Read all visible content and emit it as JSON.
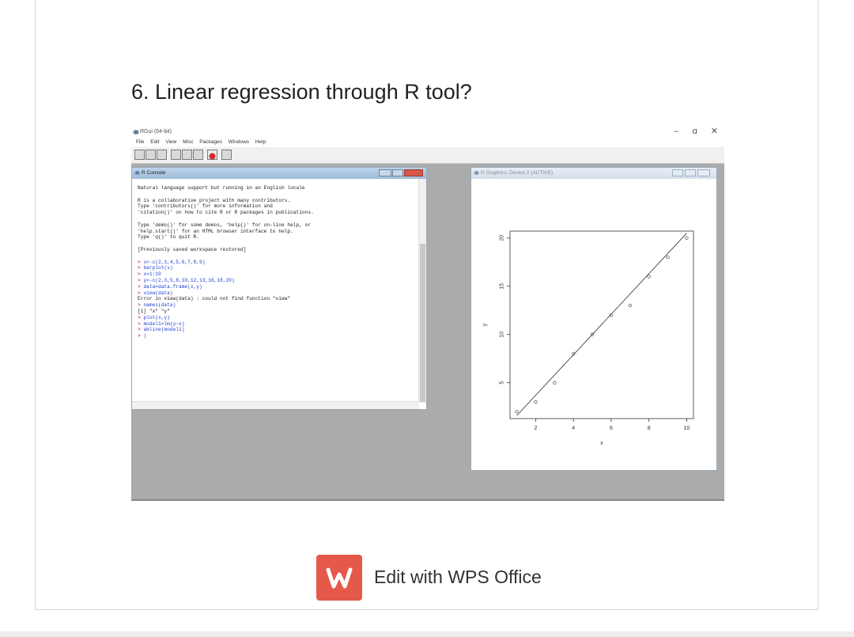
{
  "heading": "6. Linear regression through R tool?",
  "rgui": {
    "title": "RGui (64-bit)",
    "window_controls": [
      "–",
      "ɑ",
      "✕"
    ],
    "menu": [
      "File",
      "Edit",
      "View",
      "Misc",
      "Packages",
      "Windows",
      "Help"
    ]
  },
  "console": {
    "title": "R Console",
    "lines": [
      {
        "kind": "text",
        "text": "Natural language support but running in an English locale"
      },
      {
        "kind": "blank",
        "text": ""
      },
      {
        "kind": "text",
        "text": "R is a collaborative project with many contributors."
      },
      {
        "kind": "text",
        "text": "Type 'contributors()' for more information and"
      },
      {
        "kind": "text",
        "text": "'citation()' on how to cite R or R packages in publications."
      },
      {
        "kind": "blank",
        "text": ""
      },
      {
        "kind": "text",
        "text": "Type 'demo()' for some demos, 'help()' for on-line help, or"
      },
      {
        "kind": "text",
        "text": "'help.start()' for an HTML browser interface to help."
      },
      {
        "kind": "text",
        "text": "Type 'q()' to quit R."
      },
      {
        "kind": "blank",
        "text": ""
      },
      {
        "kind": "text",
        "text": "[Previously saved workspace restored]"
      },
      {
        "kind": "blank",
        "text": ""
      },
      {
        "kind": "cmd",
        "text": "s<-c(2,3,4,5,6,7,8,9)"
      },
      {
        "kind": "cmd",
        "text": "barplot(s)"
      },
      {
        "kind": "cmd",
        "text": "x=1:10"
      },
      {
        "kind": "cmd",
        "text": "y<-c(2,3,5,8,10,12,13,16,18,20)"
      },
      {
        "kind": "cmd",
        "text": "data=data.frame(x,y)"
      },
      {
        "kind": "cmd",
        "text": "view(data)"
      },
      {
        "kind": "text",
        "text": "Error in view(data) : could not find function \"view\""
      },
      {
        "kind": "cmd",
        "text": "names(data)"
      },
      {
        "kind": "text",
        "text": "[1] \"x\" \"y\""
      },
      {
        "kind": "cmd",
        "text": "plot(x,y)"
      },
      {
        "kind": "cmd",
        "text": "model1=lm(y~x)"
      },
      {
        "kind": "cmd",
        "text": "abline(model1)"
      },
      {
        "kind": "cmd",
        "text": "|"
      }
    ],
    "prompt": ">"
  },
  "graphics": {
    "title": "R Graphics: Device 2 (ACTIVE)"
  },
  "chart_data": {
    "type": "scatter",
    "x": [
      1,
      2,
      3,
      4,
      5,
      6,
      7,
      8,
      9,
      10
    ],
    "y": [
      2,
      3,
      5,
      8,
      10,
      12,
      13,
      16,
      18,
      20
    ],
    "xlabel": "x",
    "ylabel": "y",
    "xticks": [
      2,
      4,
      6,
      8,
      10
    ],
    "yticks": [
      5,
      10,
      15,
      20
    ],
    "xlim": [
      1,
      10
    ],
    "ylim": [
      2,
      20
    ],
    "regression_line": {
      "intercept": -0.5,
      "slope": 2.1
    }
  },
  "wps": {
    "label": "Edit with WPS Office",
    "color": "#e5594b"
  }
}
